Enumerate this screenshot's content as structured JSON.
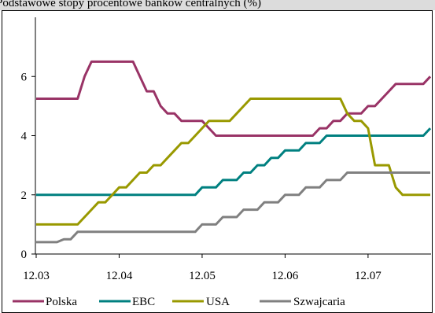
{
  "chart_data": {
    "type": "line",
    "title": "Podstawowe stopy procentowe banków centralnych (%)",
    "xlabel": "",
    "ylabel": "",
    "x": [
      "12.03",
      "01.04",
      "02.04",
      "03.04",
      "04.04",
      "05.04",
      "06.04",
      "07.04",
      "08.04",
      "09.04",
      "10.04",
      "11.04",
      "12.04",
      "01.05",
      "02.05",
      "03.05",
      "04.05",
      "05.05",
      "06.05",
      "07.05",
      "08.05",
      "09.05",
      "10.05",
      "11.05",
      "12.05",
      "01.06",
      "02.06",
      "03.06",
      "04.06",
      "05.06",
      "06.06",
      "07.06",
      "08.06",
      "09.06",
      "10.06",
      "11.06",
      "12.06",
      "01.07",
      "02.07",
      "03.07",
      "04.07",
      "05.07",
      "06.07",
      "07.07",
      "08.07",
      "09.07",
      "10.07",
      "11.07",
      "12.07",
      "01.08",
      "02.08",
      "03.08",
      "04.08",
      "05.08",
      "06.08",
      "07.08",
      "08.08",
      "09.08"
    ],
    "x_ticks": [
      "12.03",
      "12.04",
      "12.05",
      "12.06",
      "12.07"
    ],
    "y_ticks": [
      "0",
      "2",
      "4",
      "6"
    ],
    "ylim": [
      0,
      8
    ],
    "grid": false,
    "legend": "bottom",
    "series": [
      {
        "name": "Polska",
        "color": "#993366",
        "values": [
          5.25,
          5.25,
          5.25,
          5.25,
          5.25,
          5.25,
          5.25,
          6.0,
          6.5,
          6.5,
          6.5,
          6.5,
          6.5,
          6.5,
          6.5,
          6.0,
          5.5,
          5.5,
          5.0,
          4.75,
          4.75,
          4.5,
          4.5,
          4.5,
          4.5,
          4.25,
          4.0,
          4.0,
          4.0,
          4.0,
          4.0,
          4.0,
          4.0,
          4.0,
          4.0,
          4.0,
          4.0,
          4.0,
          4.0,
          4.0,
          4.0,
          4.25,
          4.25,
          4.5,
          4.5,
          4.75,
          4.75,
          4.75,
          5.0,
          5.0,
          5.25,
          5.5,
          5.75,
          5.75,
          5.75,
          5.75,
          5.75,
          6.0
        ]
      },
      {
        "name": "EBC",
        "color": "#008080",
        "values": [
          2.0,
          2.0,
          2.0,
          2.0,
          2.0,
          2.0,
          2.0,
          2.0,
          2.0,
          2.0,
          2.0,
          2.0,
          2.0,
          2.0,
          2.0,
          2.0,
          2.0,
          2.0,
          2.0,
          2.0,
          2.0,
          2.0,
          2.0,
          2.0,
          2.25,
          2.25,
          2.25,
          2.5,
          2.5,
          2.5,
          2.75,
          2.75,
          3.0,
          3.0,
          3.25,
          3.25,
          3.5,
          3.5,
          3.5,
          3.75,
          3.75,
          3.75,
          4.0,
          4.0,
          4.0,
          4.0,
          4.0,
          4.0,
          4.0,
          4.0,
          4.0,
          4.0,
          4.0,
          4.0,
          4.0,
          4.0,
          4.0,
          4.25
        ]
      },
      {
        "name": "USA",
        "color": "#999900",
        "values": [
          1.0,
          1.0,
          1.0,
          1.0,
          1.0,
          1.0,
          1.0,
          1.25,
          1.5,
          1.75,
          1.75,
          2.0,
          2.25,
          2.25,
          2.5,
          2.75,
          2.75,
          3.0,
          3.0,
          3.25,
          3.5,
          3.75,
          3.75,
          4.0,
          4.25,
          4.5,
          4.5,
          4.5,
          4.5,
          4.75,
          5.0,
          5.25,
          5.25,
          5.25,
          5.25,
          5.25,
          5.25,
          5.25,
          5.25,
          5.25,
          5.25,
          5.25,
          5.25,
          5.25,
          5.25,
          4.75,
          4.5,
          4.5,
          4.25,
          3.0,
          3.0,
          3.0,
          2.25,
          2.0,
          2.0,
          2.0,
          2.0,
          2.0
        ]
      },
      {
        "name": "Szwajcaria",
        "color": "#808080",
        "values": [
          0.4,
          0.4,
          0.4,
          0.4,
          0.5,
          0.5,
          0.75,
          0.75,
          0.75,
          0.75,
          0.75,
          0.75,
          0.75,
          0.75,
          0.75,
          0.75,
          0.75,
          0.75,
          0.75,
          0.75,
          0.75,
          0.75,
          0.75,
          0.75,
          1.0,
          1.0,
          1.0,
          1.25,
          1.25,
          1.25,
          1.5,
          1.5,
          1.5,
          1.75,
          1.75,
          1.75,
          2.0,
          2.0,
          2.0,
          2.25,
          2.25,
          2.25,
          2.5,
          2.5,
          2.5,
          2.75,
          2.75,
          2.75,
          2.75,
          2.75,
          2.75,
          2.75,
          2.75,
          2.75,
          2.75,
          2.75,
          2.75,
          2.75
        ]
      }
    ]
  }
}
